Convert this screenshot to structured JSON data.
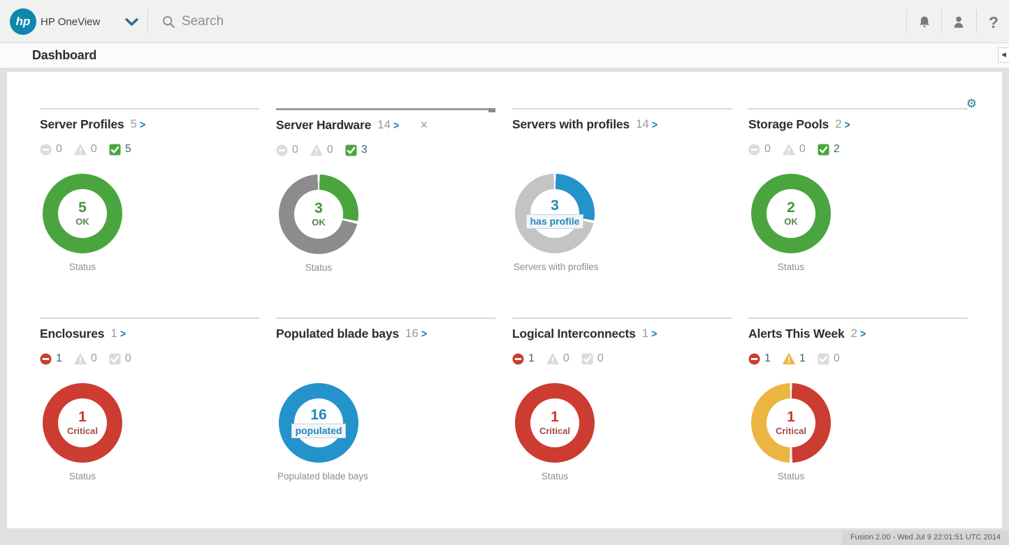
{
  "header": {
    "logo_text": "hp",
    "product_name": "HP OneView",
    "search_placeholder": "Search",
    "help_glyph": "?"
  },
  "nav": {
    "title": "Dashboard",
    "collapse_glyph": "◀"
  },
  "ui": {
    "link_arrow": ">",
    "close_glyph": "×",
    "gear_glyph": "⚙"
  },
  "palette": {
    "critical": "#CC3C30",
    "warning": "#EFB73F",
    "ok": "#4AA53E",
    "inactive": "#DBDBDB",
    "active_count": "#39657E",
    "zero_count": "#9B9B9B",
    "ring_gray": "#8C8C8C",
    "ring_light_gray": "#C4C4C4",
    "ring_blue": "#2493CB",
    "link_blue": "#1B7AA5"
  },
  "panels": [
    {
      "title": "Server Profiles",
      "count": "5",
      "closable": false,
      "emphasized": false,
      "statuses": [
        {
          "type": "critical",
          "count": "0",
          "active": false
        },
        {
          "type": "warning",
          "count": "0",
          "active": false
        },
        {
          "type": "ok",
          "count": "5",
          "active": true
        }
      ],
      "donut": {
        "value": 5,
        "total": 5,
        "gradient": [
          [
            "#4AA53E",
            0,
            360
          ]
        ],
        "number": "5",
        "number_color": "#3D9A33",
        "label": "OK",
        "label_color": "#5C7F52",
        "chip": false
      },
      "caption": "Status",
      "caption_wide": false
    },
    {
      "title": "Server Hardware",
      "count": "14",
      "closable": true,
      "emphasized": true,
      "statuses": [
        {
          "type": "critical",
          "count": "0",
          "active": false
        },
        {
          "type": "warning",
          "count": "0",
          "active": false
        },
        {
          "type": "ok",
          "count": "3",
          "active": true
        }
      ],
      "donut": {
        "value": 3,
        "total": 14,
        "gradient": [
          [
            "#ffffff",
            0,
            1.5
          ],
          [
            "#4AA53E",
            1.5,
            100
          ],
          [
            "#ffffff",
            100,
            104
          ],
          [
            "#8C8C8C",
            104,
            358.5
          ],
          [
            "#ffffff",
            358.5,
            360
          ]
        ],
        "number": "3",
        "number_color": "#3D9A33",
        "label": "OK",
        "label_color": "#5C7F52",
        "chip": false
      },
      "caption": "Status",
      "caption_wide": false
    },
    {
      "title": "Servers with profiles",
      "count": "14",
      "closable": false,
      "emphasized": false,
      "statuses": [],
      "donut": {
        "value": 3,
        "total": 14,
        "gradient": [
          [
            "#ffffff",
            0,
            1.5
          ],
          [
            "#2493CB",
            1.5,
            100
          ],
          [
            "#ffffff",
            100,
            104
          ],
          [
            "#C4C4C4",
            104,
            358.5
          ],
          [
            "#ffffff",
            358.5,
            360
          ]
        ],
        "number": "3",
        "number_color": "#2187BA",
        "label": "has profile",
        "label_color": "#2187BA",
        "chip": true
      },
      "caption": "Servers with profiles",
      "caption_wide": true
    },
    {
      "title": "Storage Pools",
      "count": "2",
      "closable": false,
      "emphasized": false,
      "statuses": [
        {
          "type": "critical",
          "count": "0",
          "active": false
        },
        {
          "type": "warning",
          "count": "0",
          "active": false
        },
        {
          "type": "ok",
          "count": "2",
          "active": true
        }
      ],
      "donut": {
        "value": 2,
        "total": 2,
        "gradient": [
          [
            "#4AA53E",
            0,
            360
          ]
        ],
        "number": "2",
        "number_color": "#3D9A33",
        "label": "OK",
        "label_color": "#5C7F52",
        "chip": false
      },
      "caption": "Status",
      "caption_wide": false
    },
    {
      "title": "Enclosures",
      "count": "1",
      "closable": false,
      "emphasized": false,
      "statuses": [
        {
          "type": "critical",
          "count": "1",
          "active": true
        },
        {
          "type": "warning",
          "count": "0",
          "active": false
        },
        {
          "type": "ok",
          "count": "0",
          "active": false
        }
      ],
      "donut": {
        "value": 1,
        "total": 1,
        "gradient": [
          [
            "#CC3C30",
            0,
            360
          ]
        ],
        "number": "1",
        "number_color": "#C43B2F",
        "label": "Critical",
        "label_color": "#A34A42",
        "chip": false
      },
      "caption": "Status",
      "caption_wide": false
    },
    {
      "title": "Populated blade bays",
      "count": "16",
      "closable": false,
      "emphasized": false,
      "statuses": [],
      "donut": {
        "value": 16,
        "total": 16,
        "gradient": [
          [
            "#2493CB",
            0,
            360
          ]
        ],
        "number": "16",
        "number_color": "#2187BA",
        "label": "populated",
        "label_color": "#2187BA",
        "chip": true
      },
      "caption": "Populated blade bays",
      "caption_wide": true
    },
    {
      "title": "Logical Interconnects",
      "count": "1",
      "closable": false,
      "emphasized": false,
      "statuses": [
        {
          "type": "critical",
          "count": "1",
          "active": true
        },
        {
          "type": "warning",
          "count": "0",
          "active": false
        },
        {
          "type": "ok",
          "count": "0",
          "active": false
        }
      ],
      "donut": {
        "value": 1,
        "total": 1,
        "gradient": [
          [
            "#CC3C30",
            0,
            360
          ]
        ],
        "number": "1",
        "number_color": "#C43B2F",
        "label": "Critical",
        "label_color": "#A34A42",
        "chip": false
      },
      "caption": "Status",
      "caption_wide": false
    },
    {
      "title": "Alerts This Week",
      "count": "2",
      "closable": false,
      "emphasized": false,
      "statuses": [
        {
          "type": "critical",
          "count": "1",
          "active": true
        },
        {
          "type": "warning",
          "count": "1",
          "active": true
        },
        {
          "type": "ok",
          "count": "0",
          "active": false
        }
      ],
      "donut": {
        "value": 1,
        "total": 2,
        "gradient": [
          [
            "#ffffff",
            0,
            1.5
          ],
          [
            "#CC3C30",
            1.5,
            178
          ],
          [
            "#ffffff",
            178,
            182
          ],
          [
            "#EBB542",
            182,
            358.5
          ],
          [
            "#ffffff",
            358.5,
            360
          ]
        ],
        "number": "1",
        "number_color": "#C43B2F",
        "label": "Critical",
        "label_color": "#A34A42",
        "chip": false
      },
      "caption": "Status",
      "caption_wide": false
    }
  ],
  "footer": {
    "text": "Fusion 2.00 - Wed Jul 9 22:01:51 UTC 2014"
  }
}
